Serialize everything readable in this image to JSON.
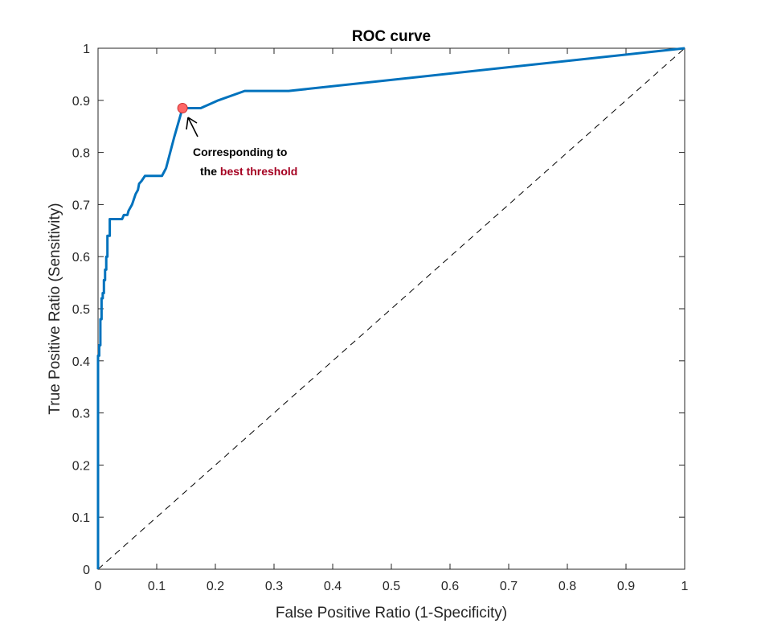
{
  "chart_data": {
    "type": "line",
    "title": "ROC curve",
    "xlabel": "False Positive Ratio (1-Specificity)",
    "ylabel": "True Positive Ratio (Sensitivity)",
    "xlim": [
      0,
      1
    ],
    "ylim": [
      0,
      1
    ],
    "xticks": [
      "0",
      "0.1",
      "0.2",
      "0.3",
      "0.4",
      "0.5",
      "0.6",
      "0.7",
      "0.8",
      "0.9",
      "1"
    ],
    "yticks": [
      "0",
      "0.1",
      "0.2",
      "0.3",
      "0.4",
      "0.5",
      "0.6",
      "0.7",
      "0.8",
      "0.9",
      "1"
    ],
    "grid": false,
    "series": [
      {
        "color": "#0072bd",
        "x": [
          0,
          0,
          0.002,
          0.002,
          0.004,
          0.004,
          0.006,
          0.006,
          0.008,
          0.008,
          0.01,
          0.01,
          0.012,
          0.012,
          0.014,
          0.014,
          0.016,
          0.016,
          0.02,
          0.02,
          0.02,
          0.027,
          0.041,
          0.044,
          0.05,
          0.052,
          0.052,
          0.058,
          0.064,
          0.064,
          0.068,
          0.07,
          0.074,
          0.08,
          0.082,
          0.109,
          0.116,
          0.13,
          0.144,
          0.145,
          0.175,
          0.205,
          0.25,
          0.325,
          1.0
        ],
        "y": [
          0,
          0.41,
          0.41,
          0.43,
          0.43,
          0.48,
          0.48,
          0.52,
          0.52,
          0.53,
          0.53,
          0.555,
          0.555,
          0.575,
          0.575,
          0.6,
          0.6,
          0.64,
          0.64,
          0.663,
          0.672,
          0.672,
          0.672,
          0.68,
          0.68,
          0.688,
          0.688,
          0.7,
          0.72,
          0.72,
          0.728,
          0.74,
          0.745,
          0.755,
          0.755,
          0.755,
          0.77,
          0.83,
          0.885,
          0.885,
          0.885,
          0.9,
          0.918,
          0.918,
          1.0
        ]
      },
      {
        "color": "#000000",
        "style": "dashed",
        "x": [
          0,
          1
        ],
        "y": [
          0,
          1
        ]
      }
    ],
    "best_point": {
      "x": 0.144,
      "y": 0.885,
      "color": "#ff6666"
    },
    "annotation": {
      "line1": "Corresponding to",
      "line2_prefix": "the ",
      "line2_highlight": "best threshold",
      "highlight_color": "#a50021"
    }
  }
}
